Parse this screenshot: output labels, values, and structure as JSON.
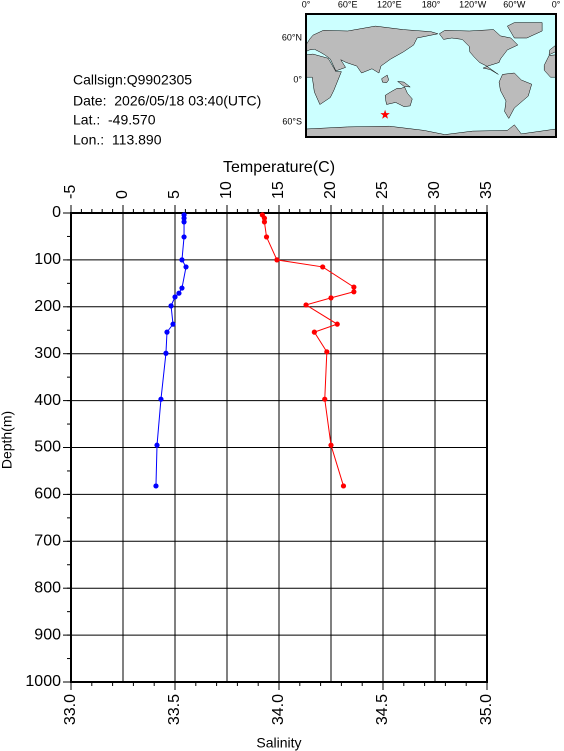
{
  "info": {
    "callsign": "Callsign:Q9902305",
    "date": "Date:  2026/05/18 03:40(UTC)",
    "lat": "Lat.:  -49.570",
    "lon": "Lon.:  113.890"
  },
  "map": {
    "lon_labels": [
      "0°",
      "60°E",
      "120°E",
      "180°",
      "120°W",
      "60°W",
      "0°"
    ],
    "lat_labels": [
      "60°N",
      "0°",
      "60°S"
    ],
    "marker": {
      "lon": 113.89,
      "lat": -49.57,
      "color": "#ff0000"
    }
  },
  "chart_data": {
    "type": "line",
    "x2_label": "Temperature(C)",
    "x_label": "Salinity",
    "y_label": "Depth(m)",
    "x2lim": [
      -5,
      35
    ],
    "x2ticks": [
      -5,
      0,
      5,
      10,
      15,
      20,
      25,
      30,
      35
    ],
    "x2minor_step": 1,
    "xlim": [
      33.0,
      35.0
    ],
    "xticks": [
      {
        "value": 33.0,
        "label": "33.0"
      },
      {
        "value": 33.5,
        "label": "33.5"
      },
      {
        "value": 34.0,
        "label": "34.0"
      },
      {
        "value": 34.5,
        "label": "34.5"
      },
      {
        "value": 35.0,
        "label": "35.0"
      }
    ],
    "xminor_step": 0.1,
    "ylim": [
      0,
      1000
    ],
    "y_reversed": true,
    "yticks": [
      0,
      100,
      200,
      300,
      400,
      500,
      600,
      700,
      800,
      900,
      1000
    ],
    "yminor_step": 50,
    "grid": true,
    "series": [
      {
        "color": "#0000ff",
        "axis": "x2",
        "depths": [
          4,
          11,
          19,
          51,
          100,
          115,
          160,
          171,
          179,
          198,
          237,
          254,
          299,
          397,
          495,
          582
        ],
        "values": [
          5.87,
          5.87,
          5.87,
          5.87,
          5.67,
          6.06,
          5.67,
          5.38,
          5.0,
          4.62,
          4.81,
          4.23,
          4.13,
          3.65,
          3.27,
          3.17
        ]
      },
      {
        "color": "#ff0000",
        "axis": "x",
        "depths": [
          4,
          11,
          19,
          51,
          100,
          115,
          158,
          168,
          181,
          196,
          237,
          254,
          296,
          397,
          495,
          582
        ],
        "values": [
          33.92,
          33.93,
          33.93,
          33.94,
          33.99,
          34.21,
          34.36,
          34.36,
          34.25,
          34.13,
          34.28,
          34.17,
          34.23,
          34.22,
          34.25,
          34.31
        ]
      }
    ]
  }
}
